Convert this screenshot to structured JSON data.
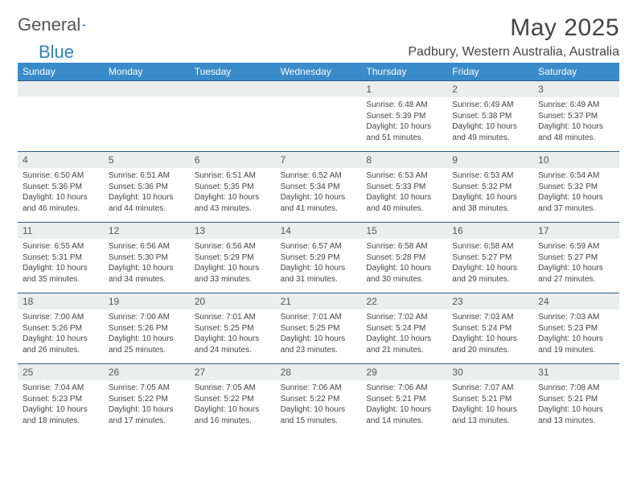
{
  "logo": {
    "word1": "General",
    "word2": "Blue"
  },
  "title": "May 2025",
  "location": "Padbury, Western Australia, Australia",
  "colors": {
    "header_bg": "#3a8bc9",
    "row_separator": "#2a5d85",
    "daynum_bg": "#eceded",
    "text": "#444444"
  },
  "dayNames": [
    "Sunday",
    "Monday",
    "Tuesday",
    "Wednesday",
    "Thursday",
    "Friday",
    "Saturday"
  ],
  "firstDayOffset": 4,
  "daysInMonth": 31,
  "days": {
    "1": {
      "sunrise": "6:48 AM",
      "sunset": "5:39 PM",
      "daylight": "10 hours and 51 minutes."
    },
    "2": {
      "sunrise": "6:49 AM",
      "sunset": "5:38 PM",
      "daylight": "10 hours and 49 minutes."
    },
    "3": {
      "sunrise": "6:49 AM",
      "sunset": "5:37 PM",
      "daylight": "10 hours and 48 minutes."
    },
    "4": {
      "sunrise": "6:50 AM",
      "sunset": "5:36 PM",
      "daylight": "10 hours and 46 minutes."
    },
    "5": {
      "sunrise": "6:51 AM",
      "sunset": "5:36 PM",
      "daylight": "10 hours and 44 minutes."
    },
    "6": {
      "sunrise": "6:51 AM",
      "sunset": "5:35 PM",
      "daylight": "10 hours and 43 minutes."
    },
    "7": {
      "sunrise": "6:52 AM",
      "sunset": "5:34 PM",
      "daylight": "10 hours and 41 minutes."
    },
    "8": {
      "sunrise": "6:53 AM",
      "sunset": "5:33 PM",
      "daylight": "10 hours and 40 minutes."
    },
    "9": {
      "sunrise": "6:53 AM",
      "sunset": "5:32 PM",
      "daylight": "10 hours and 38 minutes."
    },
    "10": {
      "sunrise": "6:54 AM",
      "sunset": "5:32 PM",
      "daylight": "10 hours and 37 minutes."
    },
    "11": {
      "sunrise": "6:55 AM",
      "sunset": "5:31 PM",
      "daylight": "10 hours and 35 minutes."
    },
    "12": {
      "sunrise": "6:56 AM",
      "sunset": "5:30 PM",
      "daylight": "10 hours and 34 minutes."
    },
    "13": {
      "sunrise": "6:56 AM",
      "sunset": "5:29 PM",
      "daylight": "10 hours and 33 minutes."
    },
    "14": {
      "sunrise": "6:57 AM",
      "sunset": "5:29 PM",
      "daylight": "10 hours and 31 minutes."
    },
    "15": {
      "sunrise": "6:58 AM",
      "sunset": "5:28 PM",
      "daylight": "10 hours and 30 minutes."
    },
    "16": {
      "sunrise": "6:58 AM",
      "sunset": "5:27 PM",
      "daylight": "10 hours and 29 minutes."
    },
    "17": {
      "sunrise": "6:59 AM",
      "sunset": "5:27 PM",
      "daylight": "10 hours and 27 minutes."
    },
    "18": {
      "sunrise": "7:00 AM",
      "sunset": "5:26 PM",
      "daylight": "10 hours and 26 minutes."
    },
    "19": {
      "sunrise": "7:00 AM",
      "sunset": "5:26 PM",
      "daylight": "10 hours and 25 minutes."
    },
    "20": {
      "sunrise": "7:01 AM",
      "sunset": "5:25 PM",
      "daylight": "10 hours and 24 minutes."
    },
    "21": {
      "sunrise": "7:01 AM",
      "sunset": "5:25 PM",
      "daylight": "10 hours and 23 minutes."
    },
    "22": {
      "sunrise": "7:02 AM",
      "sunset": "5:24 PM",
      "daylight": "10 hours and 21 minutes."
    },
    "23": {
      "sunrise": "7:03 AM",
      "sunset": "5:24 PM",
      "daylight": "10 hours and 20 minutes."
    },
    "24": {
      "sunrise": "7:03 AM",
      "sunset": "5:23 PM",
      "daylight": "10 hours and 19 minutes."
    },
    "25": {
      "sunrise": "7:04 AM",
      "sunset": "5:23 PM",
      "daylight": "10 hours and 18 minutes."
    },
    "26": {
      "sunrise": "7:05 AM",
      "sunset": "5:22 PM",
      "daylight": "10 hours and 17 minutes."
    },
    "27": {
      "sunrise": "7:05 AM",
      "sunset": "5:22 PM",
      "daylight": "10 hours and 16 minutes."
    },
    "28": {
      "sunrise": "7:06 AM",
      "sunset": "5:22 PM",
      "daylight": "10 hours and 15 minutes."
    },
    "29": {
      "sunrise": "7:06 AM",
      "sunset": "5:21 PM",
      "daylight": "10 hours and 14 minutes."
    },
    "30": {
      "sunrise": "7:07 AM",
      "sunset": "5:21 PM",
      "daylight": "10 hours and 13 minutes."
    },
    "31": {
      "sunrise": "7:08 AM",
      "sunset": "5:21 PM",
      "daylight": "10 hours and 13 minutes."
    }
  },
  "labels": {
    "sunrise": "Sunrise:",
    "sunset": "Sunset:",
    "daylight": "Daylight:"
  }
}
